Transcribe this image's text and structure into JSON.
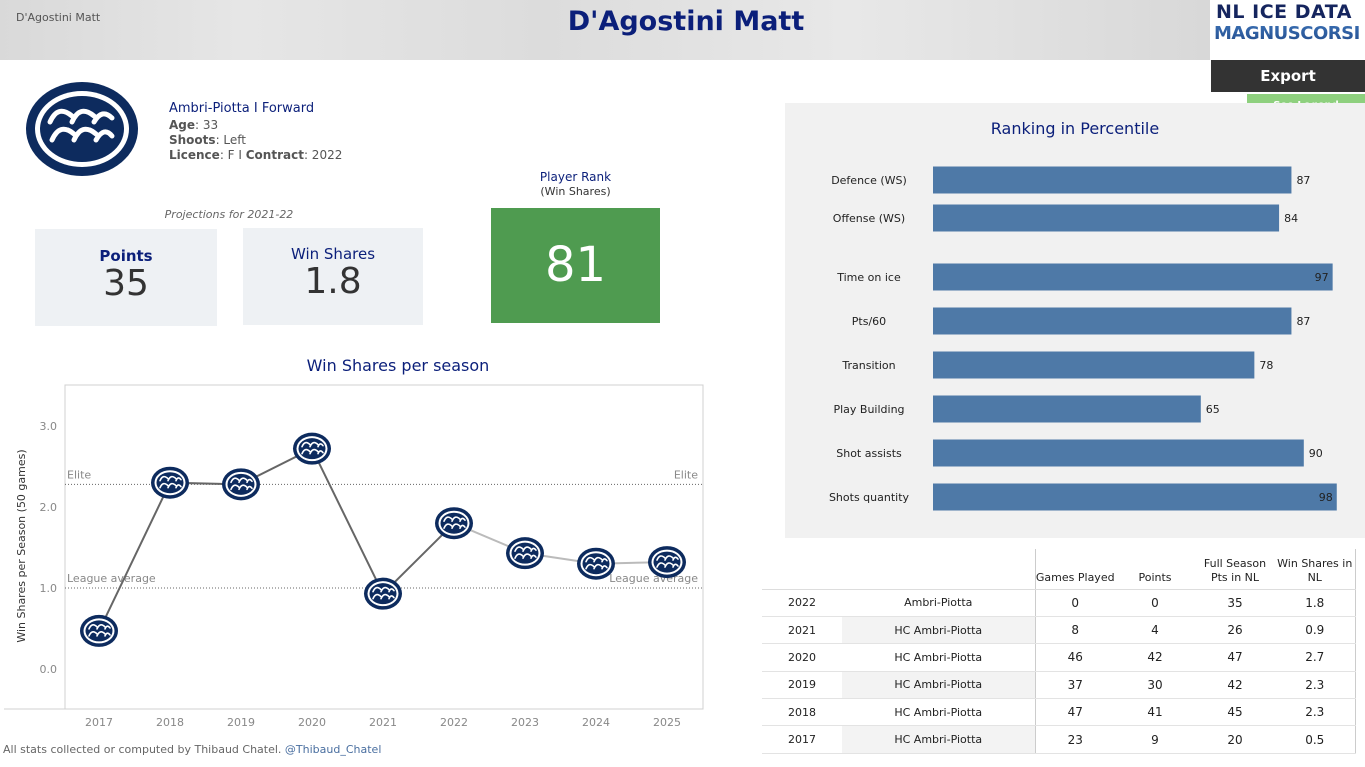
{
  "header": {
    "tag": "D'Agostini Matt",
    "title": "D'Agostini Matt",
    "logo_line1": "NL ICE DATA",
    "logo_line2": "MAGNUSCORSI",
    "export_label": "Export",
    "legend_label": "See Legend"
  },
  "player": {
    "team_position": "Ambri-Piotta  I  Forward",
    "age_label": "Age",
    "age": ": 33",
    "shoots_label": "Shoots",
    "shoots": ": Left",
    "licence_label": "Licence",
    "licence": ": F I ",
    "contract_label": "Contract",
    "contract": ": 2022"
  },
  "projections": {
    "label": "Projections for 2021-22",
    "points_label": "Points",
    "points_value": "35",
    "ws_label": "Win Shares",
    "ws_value": "1.8"
  },
  "rank": {
    "label": "Player Rank",
    "sub": "(Win Shares)",
    "value": "81",
    "color": "#4f9b50"
  },
  "colors": {
    "title_blue": "#0b1f7a",
    "bar_blue": "#4e79a7",
    "team_navy": "#0d2b5e"
  },
  "chart_data": [
    {
      "type": "line",
      "title": "Win Shares per season",
      "xlabel": "",
      "ylabel": "Win Shares per Season (50 games)",
      "x": [
        "2017",
        "2018",
        "2019",
        "2020",
        "2021",
        "2022",
        "2023",
        "2024",
        "2025"
      ],
      "series": [
        {
          "values": [
            0.47,
            2.3,
            2.28,
            2.72,
            0.93,
            1.8,
            1.43,
            1.3,
            1.32
          ]
        }
      ],
      "actual_range": [
        "2017",
        "2022"
      ],
      "projected_range": [
        "2022",
        "2025"
      ],
      "yticks": [
        "0.0",
        "1.0",
        "2.0",
        "3.0"
      ],
      "ylim": [
        -0.5,
        3.5
      ],
      "reference_lines": [
        {
          "label_left": "Elite",
          "label_right": "Elite",
          "value": 2.28
        },
        {
          "label_left": "League average",
          "label_right": "League average",
          "value": 1.0
        }
      ],
      "marker": "team-logo"
    },
    {
      "type": "bar",
      "orientation": "horizontal",
      "title": "Ranking in Percentile",
      "categories": [
        "Defence (WS)",
        "Offense (WS)",
        "Time on ice",
        "Pts/60",
        "Transition",
        "Play Building",
        "Shot assists",
        "Shots quantity"
      ],
      "values": [
        87,
        84,
        97,
        87,
        78,
        65,
        90,
        98
      ],
      "xlim": [
        0,
        100
      ]
    }
  ],
  "table": {
    "headers": [
      "Games Played",
      "Points",
      "Full Season Pts in NL",
      "Win Shares in NL"
    ],
    "rows": [
      [
        "2022",
        "Ambri-Piotta",
        "0",
        "0",
        "35",
        "1.8"
      ],
      [
        "2021",
        "HC Ambri-Piotta",
        "8",
        "4",
        "26",
        "0.9"
      ],
      [
        "2020",
        "HC Ambri-Piotta",
        "46",
        "42",
        "47",
        "2.7"
      ],
      [
        "2019",
        "HC Ambri-Piotta",
        "37",
        "30",
        "42",
        "2.3"
      ],
      [
        "2018",
        "HC Ambri-Piotta",
        "47",
        "41",
        "45",
        "2.3"
      ],
      [
        "2017",
        "HC Ambri-Piotta",
        "23",
        "9",
        "20",
        "0.5"
      ]
    ]
  },
  "footer": {
    "text": "All stats collected or computed by Thibaud Chatel. ",
    "handle": "@Thibaud_Chatel"
  }
}
